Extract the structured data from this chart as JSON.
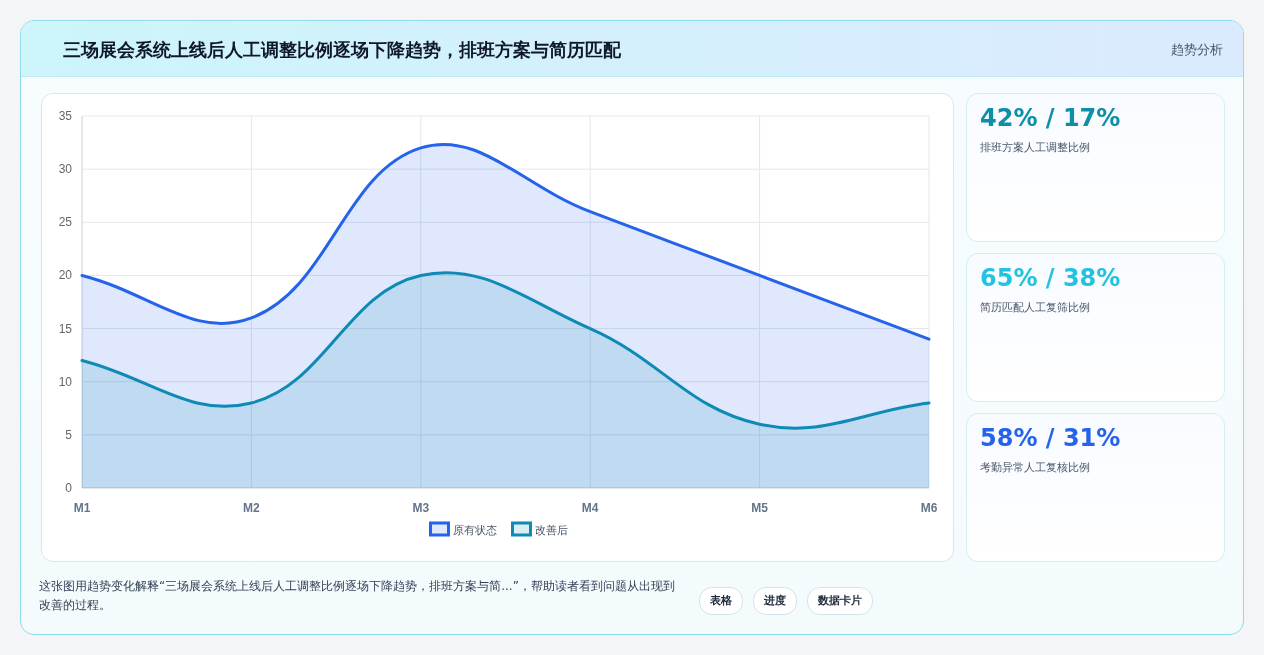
{
  "chart_data": [
    {
      "type": "area",
      "title": "三场展会系统上线后人工调整比例逐场下降趋势，排班方案与简历匹配",
      "categories": [
        "M1",
        "M2",
        "M3",
        "M4",
        "M5",
        "M6"
      ],
      "series": [
        {
          "name": "原有状态",
          "color": "#2563eb",
          "values": [
            20,
            16,
            32,
            26,
            20,
            14
          ]
        },
        {
          "name": "改善后",
          "color": "#0e8ab4",
          "values": [
            12,
            8,
            20,
            15,
            6,
            8
          ]
        }
      ],
      "ylim": [
        0,
        35
      ],
      "yticks": [
        0,
        5,
        10,
        15,
        20,
        25,
        30,
        35
      ],
      "grid": true,
      "legend": "bottom",
      "marker": "none",
      "annotations": [
        "趋势分析",
        "这张图用趋势变化解释“三场展会系统上线后人工调整比例逐场下降趋势，排班方案与简...”，帮助读者看到问题从出现到改善的过程。",
        "表格",
        "进度",
        "数据卡片"
      ]
    },
    {
      "type": "other",
      "title": "42% / 17%",
      "subtitle": "排班方案人工调整比例"
    },
    {
      "type": "other",
      "title": "65% / 38%",
      "subtitle": "简历匹配人工复筛比例"
    },
    {
      "type": "other",
      "title": "58% / 31%",
      "subtitle": "考勤异常人工复核比例"
    }
  ]
}
